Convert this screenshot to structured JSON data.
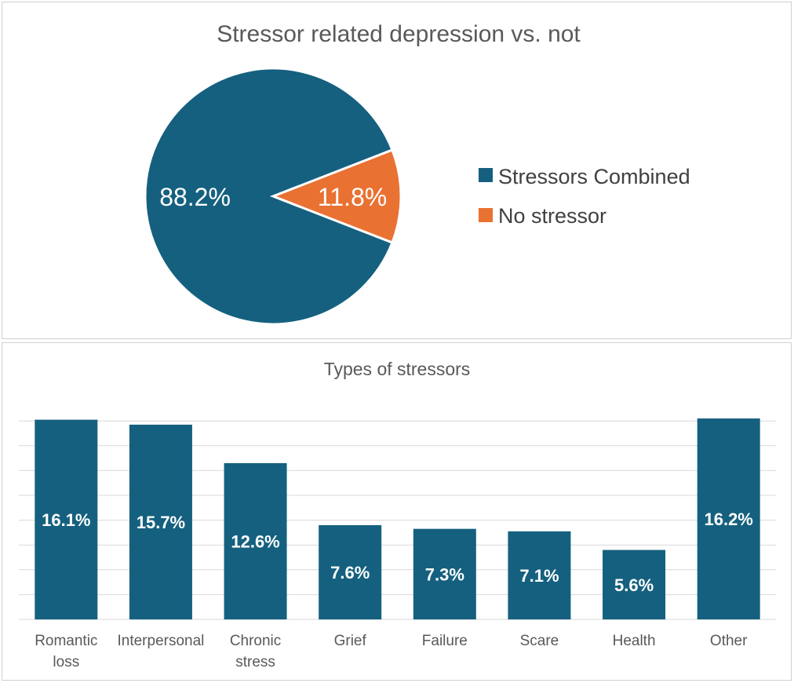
{
  "colors": {
    "primary": "#15607f",
    "accent": "#e97132"
  },
  "chart_data": [
    {
      "type": "pie",
      "title": "Stressor related depression vs. not",
      "labels": [
        "Stressors Combined",
        "No stressor"
      ],
      "values": [
        88.2,
        11.8
      ],
      "value_labels": [
        "88.2%",
        "11.8%"
      ],
      "colors": [
        "#15607f",
        "#e97132"
      ],
      "legend": "right"
    },
    {
      "type": "bar",
      "title": "Types of stressors",
      "categories": [
        [
          "Romantic",
          "loss"
        ],
        [
          "Interpersonal"
        ],
        [
          "Chronic",
          "stress"
        ],
        [
          "Grief"
        ],
        [
          "Failure"
        ],
        [
          "Scare"
        ],
        [
          "Health"
        ],
        [
          "Other"
        ]
      ],
      "values": [
        16.1,
        15.7,
        12.6,
        7.6,
        7.3,
        7.1,
        5.6,
        16.2
      ],
      "value_labels": [
        "16.1%",
        "15.7%",
        "12.6%",
        "7.6%",
        "7.3%",
        "7.1%",
        "5.6%",
        "16.2%"
      ],
      "ylim": [
        0,
        16
      ],
      "grid": true,
      "color": "#15607f"
    }
  ]
}
